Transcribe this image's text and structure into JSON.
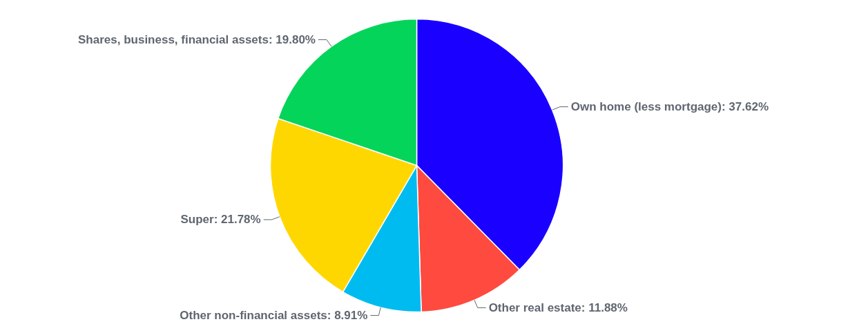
{
  "chart_data": {
    "type": "pie",
    "categories": [
      "Own home (less mortgage)",
      "Other real estate",
      "Other non-financial assets",
      "Super",
      "Shares, business, financial assets"
    ],
    "values": [
      37.62,
      11.88,
      8.91,
      21.78,
      19.8
    ],
    "value_labels": [
      "37.62%",
      "11.88%",
      "8.91%",
      "21.78%",
      "19.80%"
    ],
    "colors": [
      "#1a00ff",
      "#ff4a3f",
      "#00bbf0",
      "#ffd700",
      "#05d45a"
    ]
  }
}
